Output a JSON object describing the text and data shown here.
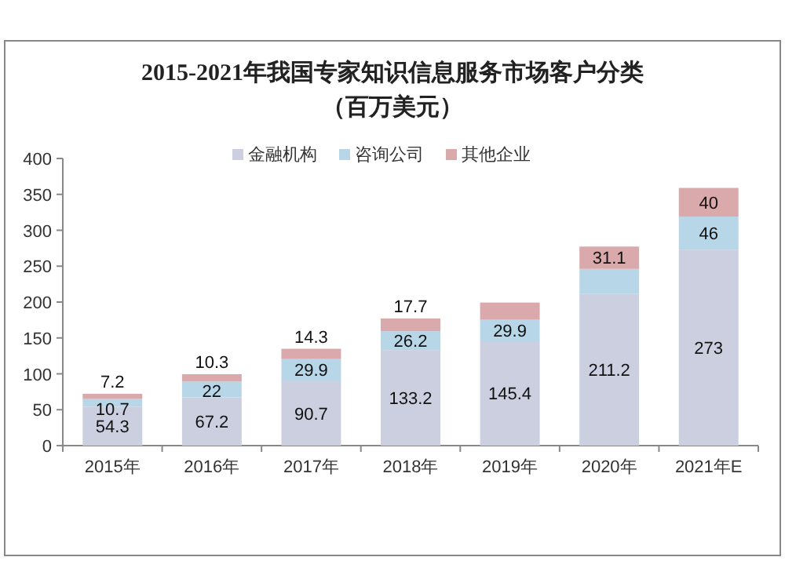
{
  "chart_data": {
    "type": "bar",
    "stacked": true,
    "title": "2015-2021年我国专家知识信息服务市场客户分类",
    "subtitle": "（百万美元）",
    "categories": [
      "2015年",
      "2016年",
      "2017年",
      "2018年",
      "2019年",
      "2020年",
      "2021年E"
    ],
    "series": [
      {
        "name": "金融机构",
        "color": "#cbcfe0",
        "values": [
          54.3,
          67.2,
          90.7,
          133.2,
          145.4,
          211.2,
          273
        ],
        "value_labels": [
          "54.3",
          "67.2",
          "90.7",
          "133.2",
          "145.4",
          "211.2",
          "273"
        ]
      },
      {
        "name": "咨询公司",
        "color": "#b7d6e8",
        "values": [
          10.7,
          22,
          29.9,
          26.2,
          29.9,
          35,
          46
        ],
        "value_labels": [
          "10.7",
          "22",
          "29.9",
          "26.2",
          "29.9",
          null,
          "46"
        ]
      },
      {
        "name": "其他企业",
        "color": "#d9a9ab",
        "values": [
          7.2,
          10.3,
          14.3,
          17.7,
          24,
          31.1,
          40
        ],
        "value_labels": [
          "7.2",
          "10.3",
          "14.3",
          "17.7",
          null,
          "31.1",
          "40"
        ]
      }
    ],
    "ylim": [
      0,
      400
    ],
    "yticks": [
      0,
      50,
      100,
      150,
      200,
      250,
      300,
      350,
      400
    ],
    "legend": "top",
    "grid": false
  }
}
